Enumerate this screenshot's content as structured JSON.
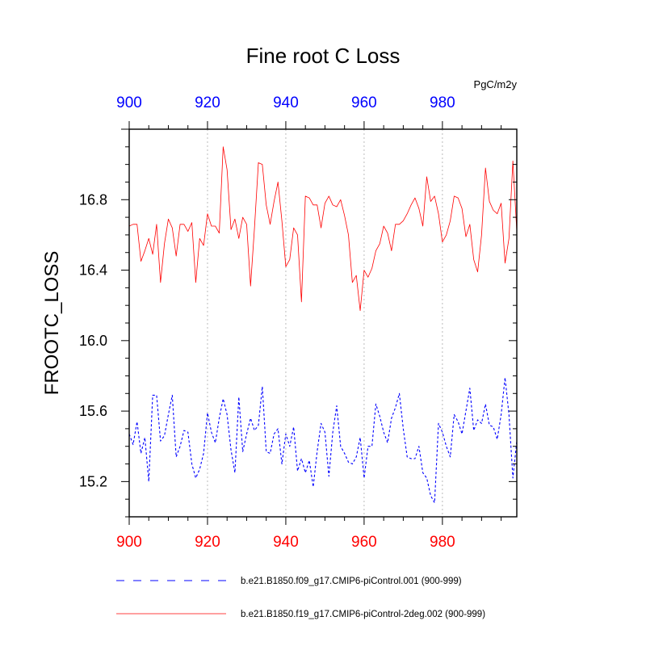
{
  "chart_data": {
    "type": "line",
    "title": "Fine root C Loss",
    "ylabel": "FROOTC_LOSS",
    "units": "PgC/m2y",
    "xlim": [
      900,
      999
    ],
    "ylim": [
      15.0,
      17.2
    ],
    "xticks": [
      900,
      920,
      940,
      960,
      980
    ],
    "yticks": [
      15.2,
      15.6,
      16.0,
      16.4,
      16.8
    ],
    "ytick_labels": [
      "15.2",
      "15.6",
      "16.0",
      "16.4",
      "16.8"
    ],
    "xtick_labels": [
      "900",
      "920",
      "940",
      "960",
      "980"
    ],
    "grid_x": true,
    "legend_position": "bottom",
    "colors": {
      "bottom_axis": "#ff0000",
      "top_axis": "#0000ff"
    },
    "series": [
      {
        "name": "b.e21.B1850.f19_g17.CMIP6-piControl-2deg.002 (900-999)",
        "color": "#ff0000",
        "dash": "solid",
        "x_start": 900,
        "values": [
          16.65,
          16.66,
          16.66,
          16.45,
          16.51,
          16.58,
          16.49,
          16.66,
          16.33,
          16.55,
          16.69,
          16.64,
          16.48,
          16.66,
          16.66,
          16.62,
          16.67,
          16.33,
          16.58,
          16.54,
          16.72,
          16.65,
          16.65,
          16.61,
          17.1,
          16.97,
          16.63,
          16.69,
          16.58,
          16.7,
          16.66,
          16.31,
          16.64,
          17.01,
          17.0,
          16.77,
          16.66,
          16.79,
          16.9,
          16.68,
          16.42,
          16.46,
          16.64,
          16.6,
          16.22,
          16.82,
          16.81,
          16.77,
          16.77,
          16.64,
          16.78,
          16.82,
          16.77,
          16.76,
          16.8,
          16.71,
          16.6,
          16.33,
          16.37,
          16.17,
          16.4,
          16.36,
          16.41,
          16.51,
          16.55,
          16.65,
          16.61,
          16.51,
          16.66,
          16.66,
          16.68,
          16.72,
          16.77,
          16.81,
          16.75,
          16.65,
          16.93,
          16.79,
          16.82,
          16.72,
          16.56,
          16.6,
          16.68,
          16.82,
          16.81,
          16.75,
          16.59,
          16.66,
          16.46,
          16.39,
          16.6,
          16.98,
          16.79,
          16.74,
          16.72,
          16.78,
          16.44,
          16.58,
          17.02,
          16.62
        ]
      },
      {
        "name": "b.e21.B1850.f09_g17.CMIP6-piControl.001 (900-999)",
        "color": "#0000ff",
        "dash": "dashed",
        "x_start": 900,
        "values": [
          15.47,
          15.41,
          15.54,
          15.36,
          15.45,
          15.2,
          15.69,
          15.69,
          15.43,
          15.46,
          15.58,
          15.69,
          15.34,
          15.4,
          15.49,
          15.48,
          15.3,
          15.22,
          15.27,
          15.36,
          15.59,
          15.48,
          15.42,
          15.56,
          15.67,
          15.58,
          15.38,
          15.25,
          15.68,
          15.37,
          15.47,
          15.56,
          15.49,
          15.52,
          15.74,
          15.37,
          15.36,
          15.47,
          15.5,
          15.3,
          15.47,
          15.4,
          15.51,
          15.26,
          15.33,
          15.25,
          15.32,
          15.17,
          15.37,
          15.53,
          15.48,
          15.23,
          15.48,
          15.63,
          15.4,
          15.36,
          15.31,
          15.3,
          15.34,
          15.45,
          15.22,
          15.4,
          15.4,
          15.64,
          15.57,
          15.48,
          15.42,
          15.56,
          15.62,
          15.7,
          15.5,
          15.34,
          15.33,
          15.33,
          15.4,
          15.25,
          15.22,
          15.12,
          15.08,
          15.53,
          15.48,
          15.4,
          15.34,
          15.58,
          15.54,
          15.47,
          15.6,
          15.73,
          15.49,
          15.55,
          15.53,
          15.64,
          15.52,
          15.51,
          15.44,
          15.58,
          15.79,
          15.58,
          15.22,
          15.43
        ]
      }
    ]
  },
  "legend": [
    {
      "label": "b.e21.B1850.f09_g17.CMIP6-piControl.001 (900-999)",
      "color": "#0000ff",
      "dash": "dashed"
    },
    {
      "label": "b.e21.B1850.f19_g17.CMIP6-piControl-2deg.002 (900-999)",
      "color": "#ff0000",
      "dash": "solid"
    }
  ]
}
